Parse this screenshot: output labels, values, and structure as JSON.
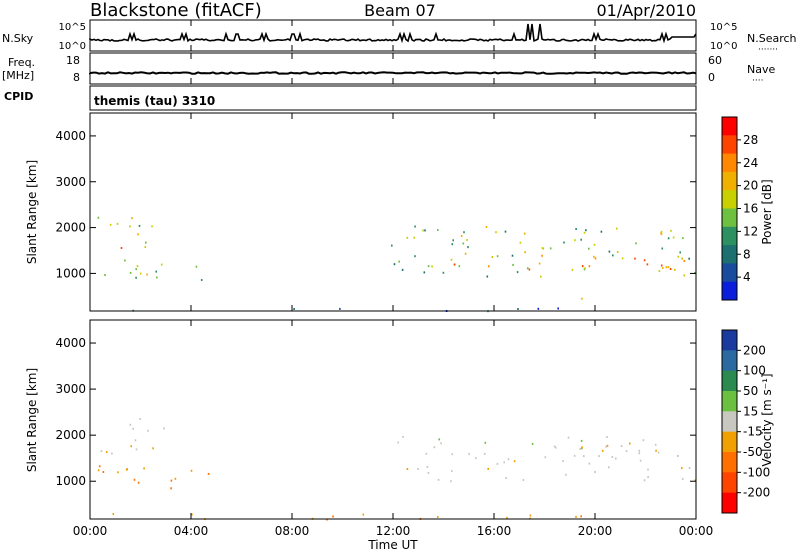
{
  "header": {
    "station": "Blackstone (fitACF)",
    "beam": "Beam 07",
    "date": "01/Apr/2010"
  },
  "nsky_panel": {
    "left_label": "N.Sky",
    "right_label": "N.Search",
    "right_dots": "·······",
    "left_ticks": [
      "10^5",
      "10^0"
    ],
    "right_ticks": [
      "10^5",
      "10^0"
    ]
  },
  "freq_panel": {
    "left_label_line1": "Freq.",
    "left_label_line2": "[MHz]",
    "left_ticks": [
      "18",
      "8"
    ],
    "right_label": "Nave",
    "right_dots": "····",
    "right_ticks": [
      "60",
      "0"
    ]
  },
  "cpid": {
    "label": "CPID",
    "program": "themis (tau) 3310"
  },
  "time_axis": {
    "label": "Time UT",
    "ticks": [
      "00:00",
      "04:00",
      "08:00",
      "12:00",
      "16:00",
      "20:00",
      "00:00"
    ]
  },
  "power_panel": {
    "ylabel": "Slant Range [km]",
    "yticks": [
      "4000",
      "3000",
      "2000",
      "1000"
    ],
    "colorbar_label": "Power [dB]",
    "colorbar_ticks": [
      "28",
      "24",
      "20",
      "16",
      "12",
      "8",
      "4"
    ],
    "colorbar_colors": [
      "#ff0000",
      "#ff4400",
      "#ff8800",
      "#f0b000",
      "#c8d000",
      "#6ec040",
      "#2c9060",
      "#1e7070",
      "#1a4c9e",
      "#0a1edc"
    ]
  },
  "velocity_panel": {
    "ylabel": "Slant Range [km]",
    "yticks": [
      "4000",
      "3000",
      "2000",
      "1000"
    ],
    "colorbar_label": "Velocity [m s⁻¹]",
    "colorbar_ticks": [
      "200",
      "100",
      "50",
      "15",
      "-15",
      "-50",
      "-100",
      "-200"
    ],
    "colorbar_colors": [
      "#1a3a9e",
      "#2a6aa0",
      "#2a8a50",
      "#6cc040",
      "#c8c8c0",
      "#f0a000",
      "#ff7000",
      "#ff4400",
      "#ff0000"
    ]
  },
  "chart_data": {
    "type": "heatmap",
    "title": "Blackstone (fitACF)  Beam 07  01/Apr/2010",
    "xlabel": "Time UT",
    "ylabel": "Slant Range [km]",
    "xlim": [
      0,
      24
    ],
    "ylim": [
      180,
      4500
    ],
    "x_tick_hours": [
      0,
      4,
      8,
      12,
      16,
      20,
      24
    ],
    "y_tick_values": [
      1000,
      2000,
      3000,
      4000
    ],
    "power_colorbar_range": [
      0,
      32
    ],
    "velocity_colorbar_range": [
      -250,
      250
    ],
    "power_regions": [
      {
        "t0": 0.3,
        "t1": 2.6,
        "r0": 1500,
        "r1": 2300,
        "level": 16
      },
      {
        "t0": 0.3,
        "t1": 4.8,
        "r0": 850,
        "r1": 1350,
        "level": 14
      },
      {
        "t0": 0.7,
        "t1": 1.7,
        "r0": 1450,
        "r1": 1700,
        "level": 24
      },
      {
        "t0": 11.9,
        "t1": 24.0,
        "r0": 950,
        "r1": 2050,
        "level": 14
      },
      {
        "t0": 13.0,
        "t1": 24.0,
        "r0": 1100,
        "r1": 1450,
        "level": 24
      },
      {
        "t0": 0.2,
        "t1": 19.5,
        "r0": 190,
        "r1": 260,
        "level": 6
      },
      {
        "t0": 19.1,
        "t1": 19.5,
        "r0": 250,
        "r1": 480,
        "level": 22
      }
    ],
    "velocity_regions": [
      {
        "t0": 0.3,
        "t1": 3.0,
        "r0": 1600,
        "r1": 2400,
        "level": 0
      },
      {
        "t0": 0.3,
        "t1": 4.8,
        "r0": 800,
        "r1": 1350,
        "level": -60
      },
      {
        "t0": 11.9,
        "t1": 24.0,
        "r0": 1000,
        "r1": 2000,
        "level": 0
      },
      {
        "t0": 0.5,
        "t1": 19.5,
        "r0": 190,
        "r1": 320,
        "level": -40
      }
    ]
  }
}
